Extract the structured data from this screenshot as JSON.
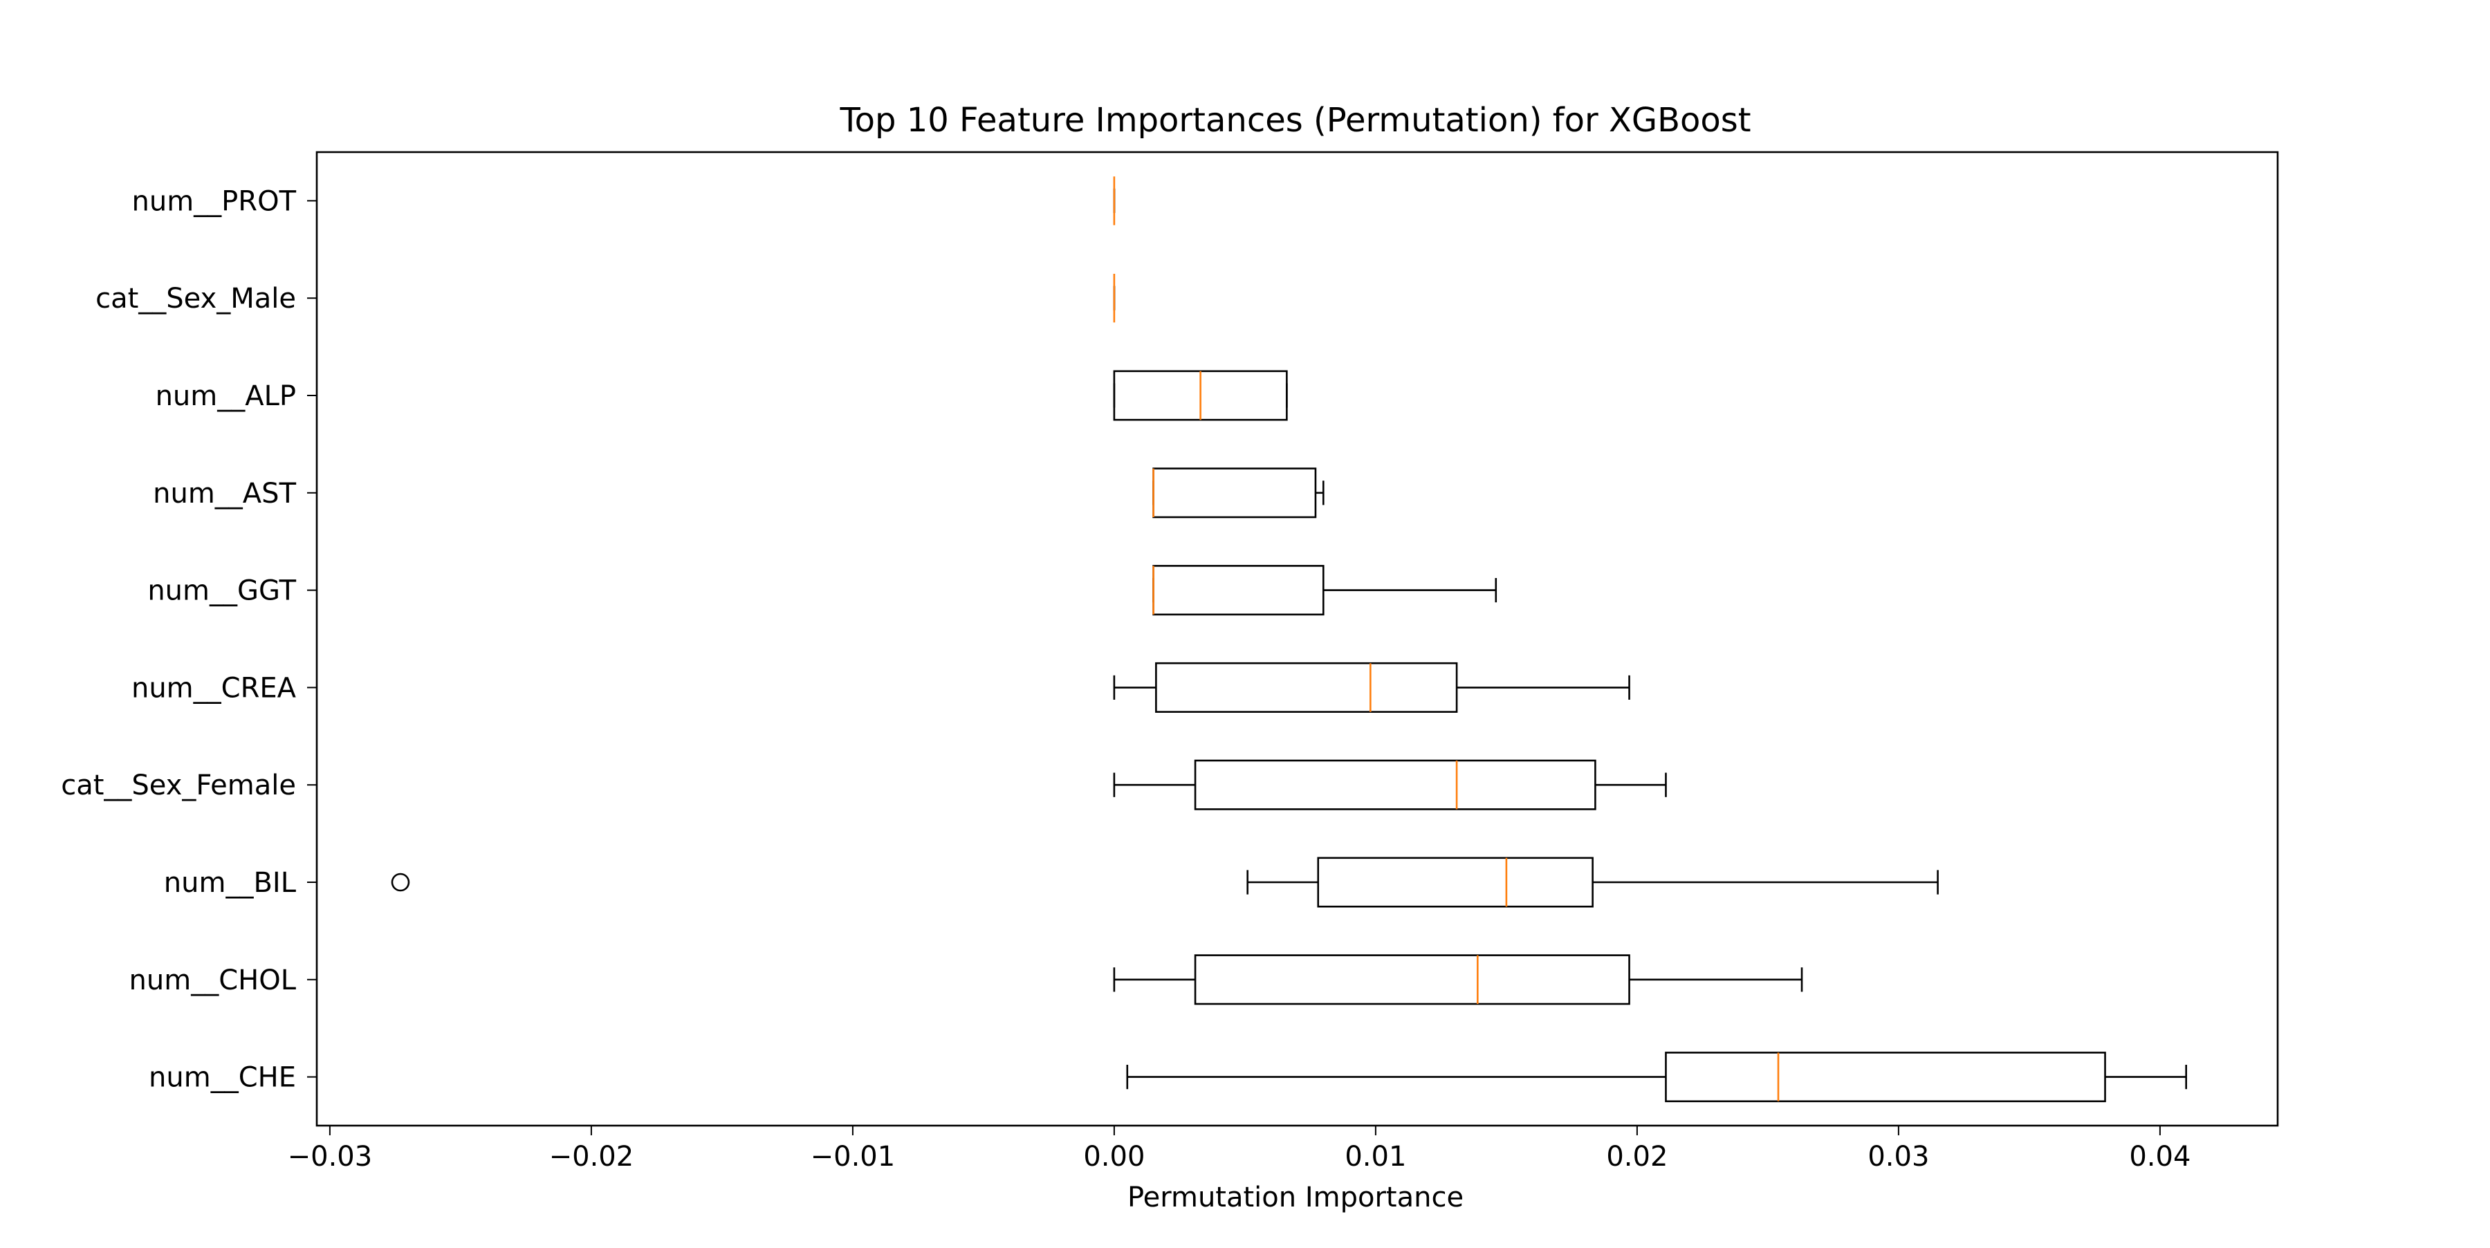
{
  "chart_data": {
    "type": "boxplot",
    "orientation": "horizontal",
    "title": "Top 10 Feature Importances (Permutation) for XGBoost",
    "xlabel": "Permutation Importance",
    "ylabel": "",
    "xlim": [
      -0.0305,
      0.0445
    ],
    "xticks": [
      -0.03,
      -0.02,
      -0.01,
      0.0,
      0.01,
      0.02,
      0.03,
      0.04
    ],
    "xtick_labels": [
      "−0.03",
      "−0.02",
      "−0.01",
      "0.00",
      "0.01",
      "0.02",
      "0.03",
      "0.04"
    ],
    "grid": false,
    "box_color": "#000000",
    "median_color": "#ff7f0e",
    "categories": [
      "num__PROT",
      "cat__Sex_Male",
      "num__ALP",
      "num__AST",
      "num__GGT",
      "num__CREA",
      "cat__Sex_Female",
      "num__BIL",
      "num__CHOL",
      "num__CHE"
    ],
    "boxes": [
      {
        "label": "num__PROT",
        "whislo": 0.0,
        "q1": 0.0,
        "med": 0.0,
        "q3": 0.0,
        "whishi": 0.0,
        "fliers": []
      },
      {
        "label": "cat__Sex_Male",
        "whislo": 0.0,
        "q1": 0.0,
        "med": 0.0,
        "q3": 0.0,
        "whishi": 0.0,
        "fliers": []
      },
      {
        "label": "num__ALP",
        "whislo": 0.0,
        "q1": 0.0,
        "med": 0.0033,
        "q3": 0.0066,
        "whishi": 0.0066,
        "fliers": []
      },
      {
        "label": "num__AST",
        "whislo": 0.0015,
        "q1": 0.0015,
        "med": 0.0015,
        "q3": 0.0077,
        "whishi": 0.008,
        "fliers": []
      },
      {
        "label": "num__GGT",
        "whislo": 0.0015,
        "q1": 0.0015,
        "med": 0.0015,
        "q3": 0.008,
        "whishi": 0.0146,
        "fliers": []
      },
      {
        "label": "num__CREA",
        "whislo": 0.0,
        "q1": 0.0016,
        "med": 0.0098,
        "q3": 0.0131,
        "whishi": 0.0197,
        "fliers": []
      },
      {
        "label": "cat__Sex_Female",
        "whislo": 0.0,
        "q1": 0.0031,
        "med": 0.0131,
        "q3": 0.0184,
        "whishi": 0.0211,
        "fliers": []
      },
      {
        "label": "num__BIL",
        "whislo": 0.0051,
        "q1": 0.0078,
        "med": 0.015,
        "q3": 0.0183,
        "whishi": 0.0315,
        "fliers": [
          -0.0273
        ]
      },
      {
        "label": "num__CHOL",
        "whislo": 0.0,
        "q1": 0.0031,
        "med": 0.0139,
        "q3": 0.0197,
        "whishi": 0.0263,
        "fliers": []
      },
      {
        "label": "num__CHE",
        "whislo": 0.0005,
        "q1": 0.0211,
        "med": 0.0254,
        "q3": 0.0379,
        "whishi": 0.041,
        "fliers": []
      }
    ]
  }
}
